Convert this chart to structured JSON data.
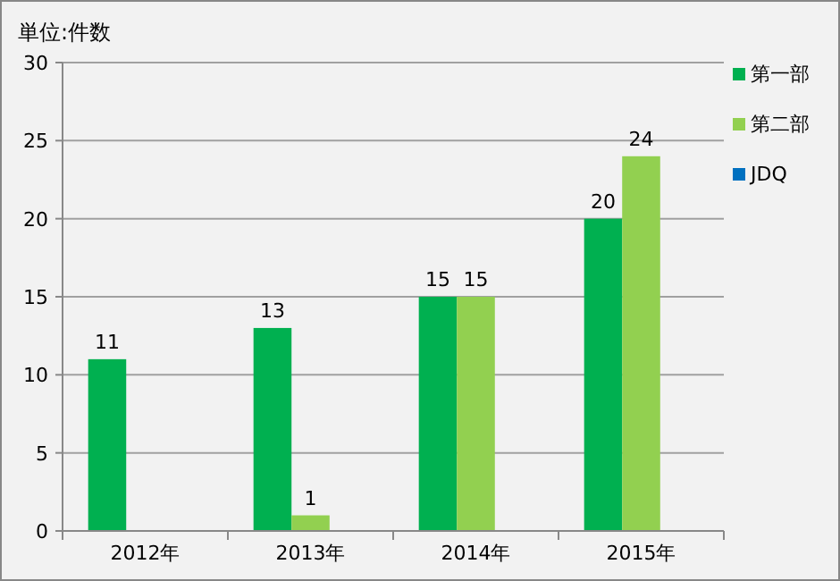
{
  "chart_data": {
    "type": "bar",
    "ylabel": "単位:件数",
    "categories": [
      "2012年",
      "2013年",
      "2014年",
      "2015年"
    ],
    "series": [
      {
        "name": "第一部",
        "color": "#00b050",
        "values": [
          11,
          13,
          15,
          20
        ]
      },
      {
        "name": "第二部",
        "color": "#92d050",
        "values": [
          null,
          1,
          15,
          24
        ]
      },
      {
        "name": "JDQ",
        "color": "#0070c0",
        "values": [
          null,
          null,
          null,
          null
        ]
      }
    ],
    "ylim": [
      0,
      30
    ],
    "yticks": [
      0,
      5,
      10,
      15,
      20,
      25,
      30
    ],
    "grid": "y",
    "legend": "right",
    "data_labels": true
  }
}
